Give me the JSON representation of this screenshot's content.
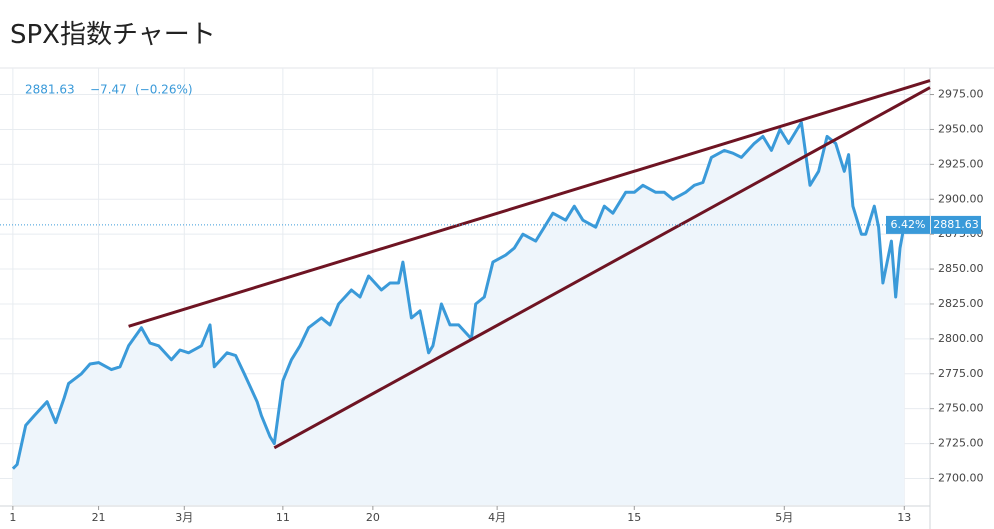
{
  "header": {
    "title": "SPX指数チャート"
  },
  "chart_data": {
    "type": "line",
    "quote": {
      "price": "2881.63",
      "change": "−7.47",
      "change_pct": "(−0.26%)"
    },
    "x": [
      0,
      1,
      3,
      5,
      8,
      10,
      12,
      13,
      16,
      18,
      20,
      23,
      25,
      27,
      30,
      32,
      34,
      37,
      39,
      41,
      44,
      46,
      47,
      50,
      52,
      54,
      57,
      58,
      60,
      61,
      63,
      65,
      67,
      69,
      72,
      74,
      76,
      79,
      81,
      83,
      86,
      88,
      90,
      91,
      93,
      95,
      97,
      98,
      100,
      102,
      104,
      107,
      108,
      110,
      112,
      115,
      117,
      119,
      122,
      124,
      126,
      129,
      131,
      133,
      136,
      138,
      140,
      143,
      145,
      147,
      150,
      152,
      154,
      157,
      159,
      161,
      163,
      166,
      168,
      170,
      173,
      175,
      177,
      179,
      181,
      183,
      184,
      186,
      188,
      190,
      192,
      194,
      195,
      196,
      198,
      199,
      201,
      202,
      203,
      205,
      206,
      207,
      208
    ],
    "series": [
      {
        "name": "SPX",
        "color": "#3a9ad9",
        "values": [
          2707,
          2710,
          2738,
          2745,
          2755,
          2740,
          2758,
          2768,
          2775,
          2782,
          2783,
          2778,
          2780,
          2795,
          2808,
          2797,
          2795,
          2785,
          2792,
          2790,
          2795,
          2810,
          2780,
          2790,
          2788,
          2775,
          2755,
          2745,
          2730,
          2725,
          2770,
          2785,
          2795,
          2808,
          2815,
          2810,
          2825,
          2835,
          2830,
          2845,
          2835,
          2840,
          2840,
          2855,
          2815,
          2820,
          2790,
          2795,
          2825,
          2810,
          2810,
          2800,
          2825,
          2830,
          2855,
          2860,
          2865,
          2875,
          2870,
          2880,
          2890,
          2885,
          2895,
          2885,
          2880,
          2895,
          2890,
          2905,
          2905,
          2910,
          2905,
          2905,
          2900,
          2905,
          2910,
          2912,
          2930,
          2935,
          2933,
          2930,
          2940,
          2945,
          2935,
          2950,
          2940,
          2950,
          2955,
          2910,
          2920,
          2945,
          2940,
          2920,
          2932,
          2895,
          2875,
          2875,
          2895,
          2880,
          2840,
          2870,
          2830,
          2865,
          2881.63
        ]
      }
    ],
    "fill_color": "#eef5fb",
    "trendlines": [
      {
        "color": "#6e1423",
        "x": [
          27,
          214
        ],
        "values": [
          2809,
          2985
        ]
      },
      {
        "color": "#6e1423",
        "x": [
          61,
          214
        ],
        "values": [
          2722,
          2980
        ]
      }
    ],
    "price_line": {
      "value": 2881.63,
      "label": "2881.63"
    },
    "price_change_label": "6.42%",
    "xlim": [
      -3,
      214
    ],
    "ylim": [
      2681,
      2989
    ],
    "xticks": [
      {
        "value": 0,
        "label": "1"
      },
      {
        "value": 20,
        "label": "21"
      },
      {
        "value": 40,
        "label": "3月"
      },
      {
        "value": 63,
        "label": "11"
      },
      {
        "value": 84,
        "label": "20"
      },
      {
        "value": 113,
        "label": "4月"
      },
      {
        "value": 145,
        "label": "15"
      },
      {
        "value": 180,
        "label": "5月"
      },
      {
        "value": 208,
        "label": "13"
      }
    ],
    "yticks": [
      {
        "value": 2700,
        "label": "2700.00"
      },
      {
        "value": 2725,
        "label": "2725.00"
      },
      {
        "value": 2750,
        "label": "2750.00"
      },
      {
        "value": 2775,
        "label": "2775.00"
      },
      {
        "value": 2800,
        "label": "2800.00"
      },
      {
        "value": 2825,
        "label": "2825.00"
      },
      {
        "value": 2850,
        "label": "2850.00"
      },
      {
        "value": 2875,
        "label": "2875.00"
      },
      {
        "value": 2900,
        "label": "2900.00"
      },
      {
        "value": 2925,
        "label": "2925.00"
      },
      {
        "value": 2950,
        "label": "2950.00"
      },
      {
        "value": 2975,
        "label": "2975.00"
      }
    ],
    "grid": true
  }
}
